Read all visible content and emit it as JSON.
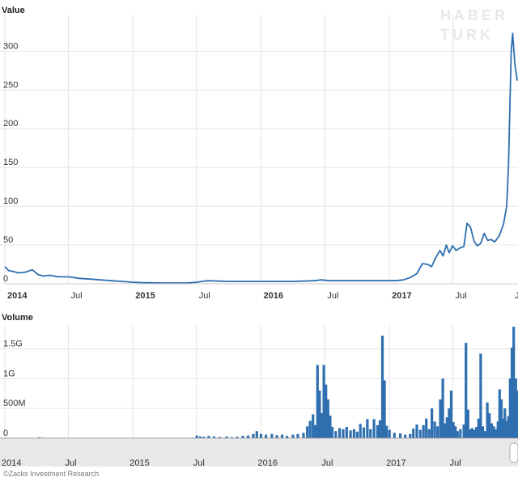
{
  "brand": {
    "watermark_line1": "HABER",
    "watermark_line2": "TURK"
  },
  "footer": {
    "credit": "©Zacks Investment Research"
  },
  "colors": {
    "line": "#2f6fb0",
    "bar": "#2f6fb0",
    "grid": "#e4e4e4",
    "strip": "#e8e8e8"
  },
  "chart_data": [
    {
      "type": "line",
      "title": "Value",
      "ylabel": "",
      "xlabel": "",
      "ylim": [
        0,
        340
      ],
      "yticks": [
        "0",
        "50",
        "100",
        "150",
        "200",
        "250",
        "300"
      ],
      "ytick_values": [
        0,
        50,
        100,
        150,
        200,
        250,
        300
      ],
      "xlim": [
        "2014-01-01",
        "2017-12-31"
      ],
      "xticks": [
        {
          "date": "2014-01-01",
          "label": "2014",
          "bold": true
        },
        {
          "date": "2014-07-01",
          "label": "Jul",
          "bold": false
        },
        {
          "date": "2015-01-01",
          "label": "2015",
          "bold": true
        },
        {
          "date": "2015-07-01",
          "label": "Jul",
          "bold": false
        },
        {
          "date": "2016-01-01",
          "label": "2016",
          "bold": true
        },
        {
          "date": "2016-07-01",
          "label": "Jul",
          "bold": false
        },
        {
          "date": "2017-01-01",
          "label": "2017",
          "bold": true
        },
        {
          "date": "2017-07-01",
          "label": "Jul",
          "bold": false
        },
        {
          "date": "2017-12-31",
          "label": "J",
          "bold": false
        }
      ],
      "grid": true,
      "series": [
        {
          "points": [
            [
              "2014-01-01",
              22
            ],
            [
              "2014-01-12",
              17
            ],
            [
              "2014-01-25",
              16
            ],
            [
              "2014-02-08",
              14
            ],
            [
              "2014-03-01",
              15
            ],
            [
              "2014-03-20",
              18
            ],
            [
              "2014-04-05",
              12
            ],
            [
              "2014-04-20",
              10
            ],
            [
              "2014-05-10",
              11
            ],
            [
              "2014-06-01",
              9
            ],
            [
              "2014-07-01",
              9
            ],
            [
              "2014-08-01",
              7
            ],
            [
              "2014-09-01",
              6
            ],
            [
              "2014-10-01",
              5
            ],
            [
              "2014-11-01",
              4
            ],
            [
              "2014-12-01",
              3
            ],
            [
              "2015-01-01",
              2
            ],
            [
              "2015-02-01",
              1.5
            ],
            [
              "2015-04-01",
              1
            ],
            [
              "2015-06-01",
              1
            ],
            [
              "2015-07-01",
              2
            ],
            [
              "2015-08-01",
              4
            ],
            [
              "2015-10-01",
              3
            ],
            [
              "2015-12-01",
              3
            ],
            [
              "2016-02-01",
              3
            ],
            [
              "2016-04-01",
              3
            ],
            [
              "2016-06-01",
              4
            ],
            [
              "2016-06-20",
              5
            ],
            [
              "2016-07-15",
              4
            ],
            [
              "2016-09-01",
              4
            ],
            [
              "2016-11-01",
              4
            ],
            [
              "2016-12-15",
              4
            ],
            [
              "2017-01-20",
              4
            ],
            [
              "2017-02-10",
              5
            ],
            [
              "2017-03-01",
              8
            ],
            [
              "2017-03-20",
              13
            ],
            [
              "2017-04-05",
              26
            ],
            [
              "2017-04-20",
              25
            ],
            [
              "2017-05-01",
              22
            ],
            [
              "2017-05-12",
              33
            ],
            [
              "2017-05-25",
              43
            ],
            [
              "2017-06-03",
              36
            ],
            [
              "2017-06-12",
              50
            ],
            [
              "2017-06-20",
              40
            ],
            [
              "2017-06-30",
              49
            ],
            [
              "2017-07-10",
              43
            ],
            [
              "2017-07-20",
              46
            ],
            [
              "2017-08-01",
              48
            ],
            [
              "2017-08-10",
              78
            ],
            [
              "2017-08-20",
              73
            ],
            [
              "2017-08-30",
              55
            ],
            [
              "2017-09-08",
              49
            ],
            [
              "2017-09-18",
              52
            ],
            [
              "2017-09-28",
              65
            ],
            [
              "2017-10-08",
              56
            ],
            [
              "2017-10-18",
              57
            ],
            [
              "2017-10-28",
              54
            ],
            [
              "2017-11-10",
              62
            ],
            [
              "2017-11-22",
              77
            ],
            [
              "2017-12-01",
              100
            ],
            [
              "2017-12-06",
              150
            ],
            [
              "2017-12-10",
              225
            ],
            [
              "2017-12-14",
              300
            ],
            [
              "2017-12-18",
              323
            ],
            [
              "2017-12-24",
              285
            ],
            [
              "2017-12-31",
              262
            ]
          ]
        }
      ]
    },
    {
      "type": "bar",
      "title": "Volume",
      "ylabel": "",
      "xlabel": "",
      "ylim": [
        0,
        1900000000
      ],
      "yticks": [
        "0",
        "500M",
        "1G",
        "1.5G"
      ],
      "ytick_values": [
        0,
        500000000,
        1000000000,
        1500000000
      ],
      "xlim": [
        "2014-01-01",
        "2017-12-31"
      ],
      "xticks": [
        {
          "date": "2014-01-01",
          "label": "2014"
        },
        {
          "date": "2014-07-01",
          "label": "Jul"
        },
        {
          "date": "2015-01-01",
          "label": "2015"
        },
        {
          "date": "2015-07-01",
          "label": "Jul"
        },
        {
          "date": "2016-01-01",
          "label": "2016"
        },
        {
          "date": "2016-07-01",
          "label": "Jul"
        },
        {
          "date": "2017-01-01",
          "label": "2017"
        },
        {
          "date": "2017-07-01",
          "label": "Jul"
        }
      ],
      "grid": true,
      "bars": [
        [
          "2014-01-05",
          8000000
        ],
        [
          "2014-01-20",
          6000000
        ],
        [
          "2014-03-01",
          5000000
        ],
        [
          "2014-04-10",
          15000000
        ],
        [
          "2014-04-24",
          8000000
        ],
        [
          "2014-06-01",
          4000000
        ],
        [
          "2014-07-15",
          4000000
        ],
        [
          "2014-09-01",
          3000000
        ],
        [
          "2014-11-01",
          3000000
        ],
        [
          "2015-01-15",
          3000000
        ],
        [
          "2015-03-01",
          3000000
        ],
        [
          "2015-05-01",
          3000000
        ],
        [
          "2015-06-20",
          10000000
        ],
        [
          "2015-07-02",
          45000000
        ],
        [
          "2015-07-12",
          30000000
        ],
        [
          "2015-07-22",
          25000000
        ],
        [
          "2015-08-05",
          38000000
        ],
        [
          "2015-08-20",
          30000000
        ],
        [
          "2015-09-05",
          20000000
        ],
        [
          "2015-09-25",
          30000000
        ],
        [
          "2015-10-10",
          18000000
        ],
        [
          "2015-10-25",
          25000000
        ],
        [
          "2015-11-10",
          40000000
        ],
        [
          "2015-11-25",
          45000000
        ],
        [
          "2015-12-10",
          70000000
        ],
        [
          "2015-12-20",
          120000000
        ],
        [
          "2016-01-01",
          70000000
        ],
        [
          "2016-01-15",
          60000000
        ],
        [
          "2016-02-01",
          70000000
        ],
        [
          "2016-02-15",
          50000000
        ],
        [
          "2016-03-01",
          60000000
        ],
        [
          "2016-03-15",
          40000000
        ],
        [
          "2016-04-01",
          60000000
        ],
        [
          "2016-04-15",
          70000000
        ],
        [
          "2016-05-01",
          90000000
        ],
        [
          "2016-05-12",
          200000000
        ],
        [
          "2016-05-20",
          290000000
        ],
        [
          "2016-05-28",
          400000000
        ],
        [
          "2016-06-04",
          220000000
        ],
        [
          "2016-06-10",
          1230000000
        ],
        [
          "2016-06-16",
          800000000
        ],
        [
          "2016-06-22",
          420000000
        ],
        [
          "2016-06-28",
          1230000000
        ],
        [
          "2016-07-04",
          900000000
        ],
        [
          "2016-07-10",
          650000000
        ],
        [
          "2016-07-16",
          380000000
        ],
        [
          "2016-07-22",
          190000000
        ],
        [
          "2016-08-01",
          120000000
        ],
        [
          "2016-08-12",
          170000000
        ],
        [
          "2016-08-22",
          150000000
        ],
        [
          "2016-09-01",
          190000000
        ],
        [
          "2016-09-12",
          130000000
        ],
        [
          "2016-09-22",
          150000000
        ],
        [
          "2016-10-01",
          110000000
        ],
        [
          "2016-10-10",
          240000000
        ],
        [
          "2016-10-20",
          180000000
        ],
        [
          "2016-10-30",
          320000000
        ],
        [
          "2016-11-08",
          150000000
        ],
        [
          "2016-11-18",
          320000000
        ],
        [
          "2016-11-28",
          220000000
        ],
        [
          "2016-12-05",
          300000000
        ],
        [
          "2016-12-12",
          1720000000
        ],
        [
          "2016-12-18",
          970000000
        ],
        [
          "2016-12-24",
          210000000
        ],
        [
          "2017-01-01",
          140000000
        ],
        [
          "2017-01-15",
          90000000
        ],
        [
          "2017-02-01",
          80000000
        ],
        [
          "2017-02-15",
          60000000
        ],
        [
          "2017-03-01",
          70000000
        ],
        [
          "2017-03-10",
          160000000
        ],
        [
          "2017-03-20",
          230000000
        ],
        [
          "2017-03-30",
          140000000
        ],
        [
          "2017-04-08",
          220000000
        ],
        [
          "2017-04-16",
          330000000
        ],
        [
          "2017-04-24",
          150000000
        ],
        [
          "2017-05-02",
          500000000
        ],
        [
          "2017-05-10",
          280000000
        ],
        [
          "2017-05-18",
          200000000
        ],
        [
          "2017-05-26",
          650000000
        ],
        [
          "2017-06-02",
          1000000000
        ],
        [
          "2017-06-08",
          250000000
        ],
        [
          "2017-06-14",
          350000000
        ],
        [
          "2017-06-20",
          500000000
        ],
        [
          "2017-06-26",
          800000000
        ],
        [
          "2017-07-02",
          270000000
        ],
        [
          "2017-07-08",
          200000000
        ],
        [
          "2017-07-14",
          120000000
        ],
        [
          "2017-07-22",
          150000000
        ],
        [
          "2017-08-01",
          230000000
        ],
        [
          "2017-08-07",
          1600000000
        ],
        [
          "2017-08-13",
          480000000
        ],
        [
          "2017-08-19",
          150000000
        ],
        [
          "2017-08-25",
          170000000
        ],
        [
          "2017-08-31",
          140000000
        ],
        [
          "2017-09-06",
          190000000
        ],
        [
          "2017-09-12",
          330000000
        ],
        [
          "2017-09-18",
          1420000000
        ],
        [
          "2017-09-24",
          200000000
        ],
        [
          "2017-10-01",
          120000000
        ],
        [
          "2017-10-07",
          600000000
        ],
        [
          "2017-10-13",
          420000000
        ],
        [
          "2017-10-19",
          250000000
        ],
        [
          "2017-10-25",
          200000000
        ],
        [
          "2017-11-01",
          150000000
        ],
        [
          "2017-11-06",
          280000000
        ],
        [
          "2017-11-11",
          820000000
        ],
        [
          "2017-11-16",
          650000000
        ],
        [
          "2017-11-21",
          330000000
        ],
        [
          "2017-11-26",
          500000000
        ],
        [
          "2017-12-01",
          290000000
        ],
        [
          "2017-12-06",
          370000000
        ],
        [
          "2017-12-11",
          1000000000
        ],
        [
          "2017-12-16",
          1520000000
        ],
        [
          "2017-12-21",
          1870000000
        ],
        [
          "2017-12-27",
          1000000000
        ],
        [
          "2017-12-30",
          800000000
        ]
      ]
    }
  ]
}
